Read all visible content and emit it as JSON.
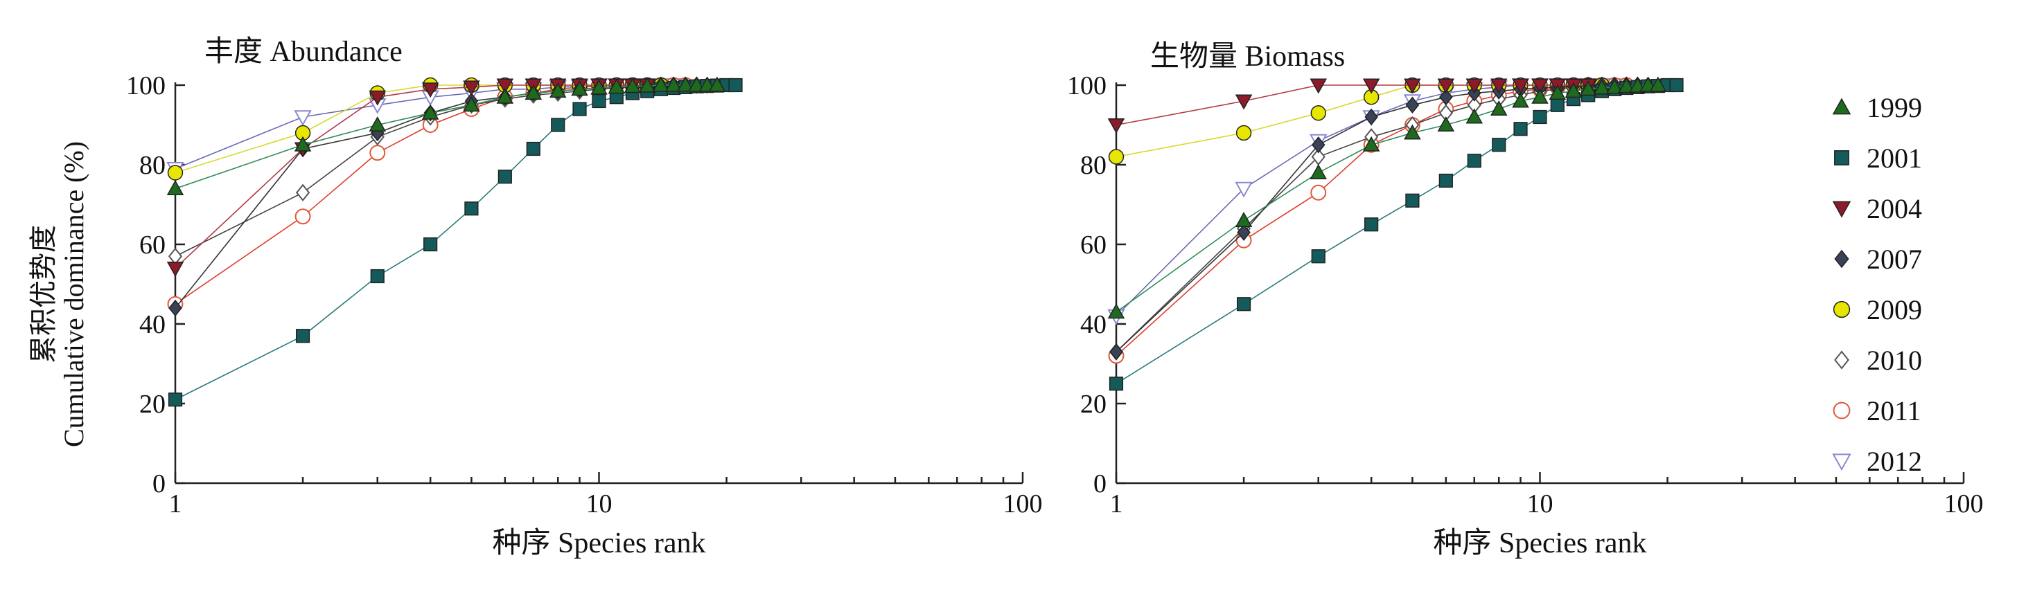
{
  "chart_data": {
    "y_axis_title_cn": "累积优势度",
    "y_axis_title_en": "Cumulative dominance (%)",
    "x_axis_title": "种序  Species rank",
    "x_ticks": [
      "1",
      "10",
      "100"
    ],
    "y_ticks": [
      "0",
      "20",
      "40",
      "60",
      "80",
      "100"
    ],
    "xscale": "log",
    "xlim": [
      1,
      100
    ],
    "ylim": [
      0,
      100
    ],
    "legend_position": "right",
    "colors": {
      "1999": "#1e6b1e",
      "2001": "#155a5a",
      "2004": "#8b1a2b",
      "2007": "#3a4255",
      "2009": "#e6e600",
      "2010": "#555555",
      "2011": "#e0583a",
      "2012": "#8a8ad0"
    },
    "line_colors": {
      "1999": "#2e8b57",
      "2001": "#2a7a7a",
      "2004": "#b23a48",
      "2007": "#333333",
      "2009": "#d8d830",
      "2010": "#444444",
      "2011": "#e03c2c",
      "2012": "#6a6ab8"
    },
    "markers": {
      "1999": "triangle-up",
      "2001": "square",
      "2004": "triangle-down",
      "2007": "diamond",
      "2009": "circle",
      "2010": "diamond-open",
      "2011": "circle-open",
      "2012": "triangle-down-open"
    },
    "legend": [
      "1999",
      "2001",
      "2004",
      "2007",
      "2009",
      "2010",
      "2011",
      "2012"
    ],
    "panels": [
      {
        "title": "丰度  Abundance",
        "type": "line",
        "series": [
          {
            "name": "2012",
            "x": [
              1,
              2,
              3,
              4,
              5,
              6,
              7,
              8,
              9,
              10,
              11,
              12,
              13,
              14,
              15
            ],
            "y": [
              79,
              92,
              95,
              97,
              98,
              99,
              99,
              99.5,
              99.7,
              100,
              100,
              100,
              100,
              100,
              100
            ]
          },
          {
            "name": "2011",
            "x": [
              1,
              2,
              3,
              4,
              5,
              6,
              7,
              8,
              9,
              10,
              11,
              12,
              13,
              14,
              15,
              16
            ],
            "y": [
              45,
              67,
              83,
              90,
              94,
              97,
              98,
              99,
              99.5,
              99.7,
              100,
              100,
              100,
              100,
              100,
              100
            ]
          },
          {
            "name": "2010",
            "x": [
              1,
              2,
              3,
              4,
              5,
              6,
              7,
              8,
              9,
              10,
              11,
              12,
              13,
              14,
              15,
              16,
              17
            ],
            "y": [
              57,
              73,
              87,
              92,
              95,
              96.5,
              97.5,
              98,
              98.5,
              99,
              99.3,
              99.5,
              99.7,
              100,
              100,
              100,
              100
            ]
          },
          {
            "name": "2009",
            "x": [
              1,
              2,
              3,
              4,
              5,
              6,
              7,
              8,
              9,
              10,
              11,
              12,
              13,
              14
            ],
            "y": [
              78,
              88,
              98,
              100,
              100,
              100,
              100,
              100,
              100,
              100,
              100,
              100,
              100,
              100
            ]
          },
          {
            "name": "2007",
            "x": [
              1,
              2,
              3,
              4,
              5,
              6,
              7,
              8,
              9,
              10,
              11,
              12,
              13,
              14,
              15,
              16,
              17,
              18
            ],
            "y": [
              44,
              84,
              88,
              93,
              96,
              97,
              98,
              98.5,
              99,
              99.3,
              99.5,
              99.7,
              99.8,
              100,
              100,
              100,
              100,
              100
            ]
          },
          {
            "name": "2004",
            "x": [
              1,
              2,
              3,
              4,
              5,
              6,
              7,
              8,
              9,
              10,
              11,
              12,
              13
            ],
            "y": [
              54,
              84,
              97,
              99,
              99.5,
              100,
              100,
              100,
              100,
              100,
              100,
              100,
              100
            ]
          },
          {
            "name": "2001",
            "x": [
              1,
              2,
              3,
              4,
              5,
              6,
              7,
              8,
              9,
              10,
              11,
              12,
              13,
              14,
              15,
              16,
              17,
              18,
              19,
              20,
              21
            ],
            "y": [
              21,
              37,
              52,
              60,
              69,
              77,
              84,
              90,
              94,
              96,
              97,
              98,
              98.5,
              99,
              99.3,
              99.5,
              99.7,
              99.8,
              99.9,
              100,
              100
            ]
          },
          {
            "name": "1999",
            "x": [
              1,
              2,
              3,
              4,
              5,
              6,
              7,
              8,
              9,
              10,
              11,
              12,
              13,
              14,
              15,
              16,
              17,
              18,
              19
            ],
            "y": [
              74,
              85,
              90,
              93,
              95,
              97,
              98,
              98.5,
              99,
              99.3,
              99.5,
              99.7,
              99.8,
              100,
              100,
              100,
              100,
              100,
              100
            ]
          }
        ]
      },
      {
        "title": "生物量  Biomass",
        "type": "line",
        "series": [
          {
            "name": "2012",
            "x": [
              1,
              2,
              3,
              4,
              5,
              6,
              7,
              8,
              9,
              10,
              11,
              12,
              13,
              14,
              15
            ],
            "y": [
              42,
              74,
              86,
              92,
              96,
              98,
              99,
              99.5,
              100,
              100,
              100,
              100,
              100,
              100,
              100
            ]
          },
          {
            "name": "2011",
            "x": [
              1,
              2,
              3,
              4,
              5,
              6,
              7,
              8,
              9,
              10,
              11,
              12,
              13,
              14,
              15,
              16
            ],
            "y": [
              32,
              61,
              73,
              85,
              90,
              94,
              96,
              97.5,
              98.5,
              99,
              99.5,
              100,
              100,
              100,
              100,
              100
            ]
          },
          {
            "name": "2010",
            "x": [
              1,
              2,
              3,
              4,
              5,
              6,
              7,
              8,
              9,
              10,
              11,
              12,
              13,
              14,
              15,
              16,
              17
            ],
            "y": [
              33,
              64,
              82,
              87,
              90,
              93,
              95,
              96.5,
              97.5,
              98.5,
              99,
              99.5,
              100,
              100,
              100,
              100,
              100
            ]
          },
          {
            "name": "2009",
            "x": [
              1,
              2,
              3,
              4,
              5,
              6,
              7,
              8,
              9,
              10,
              11,
              12,
              13,
              14
            ],
            "y": [
              82,
              88,
              93,
              97,
              100,
              100,
              100,
              100,
              100,
              100,
              100,
              100,
              100,
              100
            ]
          },
          {
            "name": "2007",
            "x": [
              1,
              2,
              3,
              4,
              5,
              6,
              7,
              8,
              9,
              10,
              11,
              12,
              13,
              14,
              15,
              16,
              17,
              18
            ],
            "y": [
              33,
              63,
              85,
              92,
              95,
              97,
              98,
              98.5,
              99,
              99.3,
              99.5,
              99.7,
              99.8,
              100,
              100,
              100,
              100,
              100
            ]
          },
          {
            "name": "2004",
            "x": [
              1,
              2,
              3,
              4,
              5,
              6,
              7,
              8,
              9,
              10,
              11,
              12,
              13
            ],
            "y": [
              90,
              96,
              100,
              100,
              100,
              100,
              100,
              100,
              100,
              100,
              100,
              100,
              100
            ]
          },
          {
            "name": "2001",
            "x": [
              1,
              2,
              3,
              4,
              5,
              6,
              7,
              8,
              9,
              10,
              11,
              12,
              13,
              14,
              15,
              16,
              17,
              18,
              19,
              20,
              21
            ],
            "y": [
              25,
              45,
              57,
              65,
              71,
              76,
              81,
              85,
              89,
              92,
              95,
              96.5,
              97.5,
              98.5,
              99,
              99.3,
              99.5,
              99.7,
              99.8,
              100,
              100
            ]
          },
          {
            "name": "1999",
            "x": [
              1,
              2,
              3,
              4,
              5,
              6,
              7,
              8,
              9,
              10,
              11,
              12,
              13,
              14,
              15,
              16,
              17,
              18,
              19
            ],
            "y": [
              43,
              66,
              78,
              85,
              88,
              90,
              92,
              94,
              96,
              97,
              98,
              98.5,
              99,
              99.3,
              99.5,
              99.7,
              99.8,
              100,
              100
            ]
          }
        ]
      }
    ]
  }
}
